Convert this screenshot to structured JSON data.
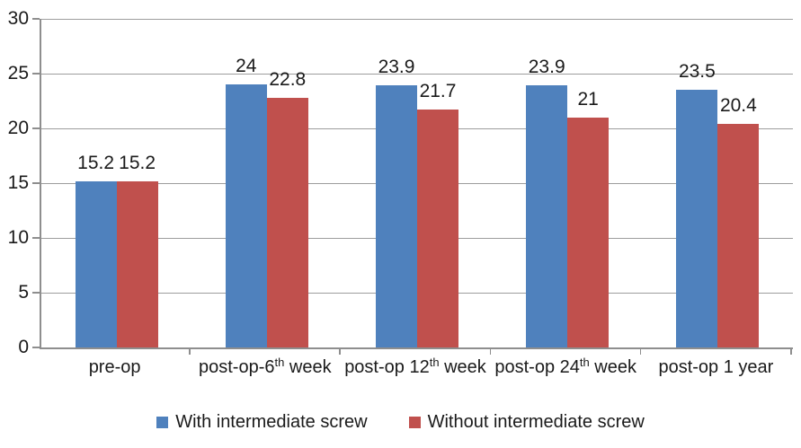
{
  "chart_data": {
    "type": "bar",
    "title": "",
    "xlabel": "",
    "ylabel": "",
    "categories": [
      "pre-op",
      "post-op-6th week",
      "post-op 12th week",
      "post-op 24th week",
      "post-op 1 year"
    ],
    "category_parts": [
      {
        "text": "pre-op",
        "sup": "",
        "rest": ""
      },
      {
        "text": "post-op-6",
        "sup": "th",
        "rest": " week"
      },
      {
        "text": "post-op 12",
        "sup": "th",
        "rest": " week"
      },
      {
        "text": "post-op 24",
        "sup": "th",
        "rest": " week"
      },
      {
        "text": "post-op 1 year",
        "sup": "",
        "rest": ""
      }
    ],
    "series": [
      {
        "name": "With intermediate screw",
        "color": "#4F81BD",
        "values": [
          15.2,
          24,
          23.9,
          23.9,
          23.5
        ],
        "labels": [
          "15.2",
          "24",
          "23.9",
          "23.9",
          "23.5"
        ]
      },
      {
        "name": "Without intermediate screw",
        "color": "#C0504D",
        "values": [
          15.2,
          22.8,
          21.7,
          21,
          20.4
        ],
        "labels": [
          "15.2",
          "22.8",
          "21.7",
          "21",
          "20.4"
        ]
      }
    ],
    "y_axis": {
      "min": 0,
      "max": 30,
      "step": 5,
      "ticks": [
        0,
        5,
        10,
        15,
        20,
        25,
        30
      ],
      "tick_labels": [
        "0",
        "5",
        "10",
        "15",
        "20",
        "25",
        "30"
      ]
    },
    "ylim": [
      0,
      30
    ],
    "grid": true,
    "legend_position": "bottom",
    "colors": {
      "axis": "#8E8E8E",
      "gridline": "#9D9D9D",
      "text": "#1A1A1A",
      "background": "#FFFFFF"
    }
  }
}
